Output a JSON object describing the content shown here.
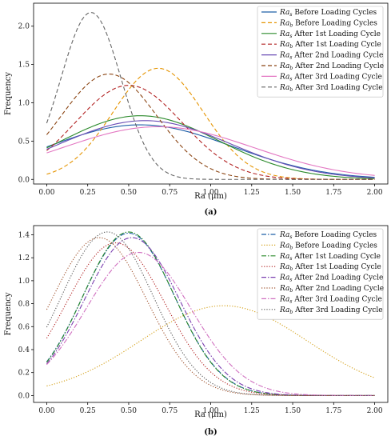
{
  "chart_data": [
    {
      "type": "line",
      "panel_label": "(a)",
      "xlabel": "Ra (μm)",
      "ylabel": "Frequency",
      "xlim": [
        -0.08,
        2.08
      ],
      "ylim": [
        -0.06,
        2.3
      ],
      "xticks": [
        0.0,
        0.25,
        0.5,
        0.75,
        1.0,
        1.25,
        1.5,
        1.75,
        2.0
      ],
      "xtick_labels": [
        "0.00",
        "0.25",
        "0.50",
        "0.75",
        "1.00",
        "1.25",
        "1.50",
        "1.75",
        "2.00"
      ],
      "yticks": [
        0.0,
        0.5,
        1.0,
        1.5,
        2.0
      ],
      "ytick_labels": [
        "0.0",
        "0.5",
        "1.0",
        "1.5",
        "2.0"
      ],
      "legend_position": "top-right",
      "series": [
        {
          "name_main": "Ra",
          "name_sub": "s",
          "name_rest": " Before Loading Cycles",
          "color": "#1f5fa8",
          "style": "solid",
          "mu": 0.57,
          "sigma": 0.56
        },
        {
          "name_main": "Ra",
          "name_sub": "b",
          "name_rest": " Before Loading Cycles",
          "color": "#e59400",
          "style": "dashed",
          "mu": 0.68,
          "sigma": 0.275
        },
        {
          "name_main": "Ra",
          "name_sub": "s",
          "name_rest": " After 1st Loading Cycle",
          "color": "#2b8a2b",
          "style": "solid",
          "mu": 0.57,
          "sigma": 0.48
        },
        {
          "name_main": "Ra",
          "name_sub": "b",
          "name_rest": " After 1st Loading Cycle",
          "color": "#b22222",
          "style": "dashed",
          "mu": 0.5,
          "sigma": 0.325
        },
        {
          "name_main": "Ra",
          "name_sub": "s",
          "name_rest": " After 2nd Loading Cycle",
          "color": "#6a4db5",
          "style": "solid",
          "mu": 0.6,
          "sigma": 0.52
        },
        {
          "name_main": "Ra",
          "name_sub": "b",
          "name_rest": " After 2nd Loading Cycle",
          "color": "#8b4513",
          "style": "dashed",
          "mu": 0.38,
          "sigma": 0.29
        },
        {
          "name_main": "Ra",
          "name_sub": "s",
          "name_rest": " After 3rd Loading Cycle",
          "color": "#e377c2",
          "style": "solid",
          "mu": 0.68,
          "sigma": 0.58
        },
        {
          "name_main": "Ra",
          "name_sub": "b",
          "name_rest": " After 3rd Loading Cycle",
          "color": "#666666",
          "style": "dashed",
          "mu": 0.27,
          "sigma": 0.183
        }
      ]
    },
    {
      "type": "line",
      "panel_label": "(b)",
      "xlabel": "Ra (μm)",
      "ylabel": "Frequency",
      "xlim": [
        -0.08,
        2.08
      ],
      "ylim": [
        -0.06,
        1.48
      ],
      "xticks": [
        0.0,
        0.25,
        0.5,
        0.75,
        1.0,
        1.25,
        1.5,
        1.75,
        2.0
      ],
      "xtick_labels": [
        "0.00",
        "0.25",
        "0.50",
        "0.75",
        "1.00",
        "1.25",
        "1.50",
        "1.75",
        "2.00"
      ],
      "yticks": [
        0.0,
        0.2,
        0.4,
        0.6,
        0.8,
        1.0,
        1.2,
        1.4
      ],
      "ytick_labels": [
        "0.0",
        "0.2",
        "0.4",
        "0.6",
        "0.8",
        "1.0",
        "1.2",
        "1.4"
      ],
      "legend_position": "top-right",
      "series": [
        {
          "name_main": "Ra",
          "name_sub": "s",
          "name_rest": " Before Loading Cycles",
          "color": "#1f5fa8",
          "style": "dashdot",
          "mu": 0.5,
          "sigma": 0.282
        },
        {
          "name_main": "Ra",
          "name_sub": "b",
          "name_rest": " Before Loading Cycles",
          "color": "#d4a017",
          "style": "dotted",
          "mu": 1.08,
          "sigma": 0.51
        },
        {
          "name_main": "Ra",
          "name_sub": "s",
          "name_rest": " After 1st Loading Cycle",
          "color": "#2b8a2b",
          "style": "dashdot",
          "mu": 0.5,
          "sigma": 0.28
        },
        {
          "name_main": "Ra",
          "name_sub": "b",
          "name_rest": " After 1st Loading Cycle",
          "color": "#b22222",
          "style": "dotted",
          "mu": 0.42,
          "sigma": 0.3
        },
        {
          "name_main": "Ra",
          "name_sub": "s",
          "name_rest": " After 2nd Loading Cycle",
          "color": "#7a3fb0",
          "style": "dashdot",
          "mu": 0.52,
          "sigma": 0.29
        },
        {
          "name_main": "Ra",
          "name_sub": "b",
          "name_rest": " After 2nd Loading Cycle",
          "color": "#a0522d",
          "style": "dotted",
          "mu": 0.32,
          "sigma": 0.29
        },
        {
          "name_main": "Ra",
          "name_sub": "s",
          "name_rest": " After 3rd Loading Cycle",
          "color": "#d070c0",
          "style": "dashdot",
          "mu": 0.56,
          "sigma": 0.32
        },
        {
          "name_main": "Ra",
          "name_sub": "b",
          "name_rest": " After 3rd Loading Cycle",
          "color": "#555555",
          "style": "dotted",
          "mu": 0.37,
          "sigma": 0.28
        }
      ]
    }
  ]
}
